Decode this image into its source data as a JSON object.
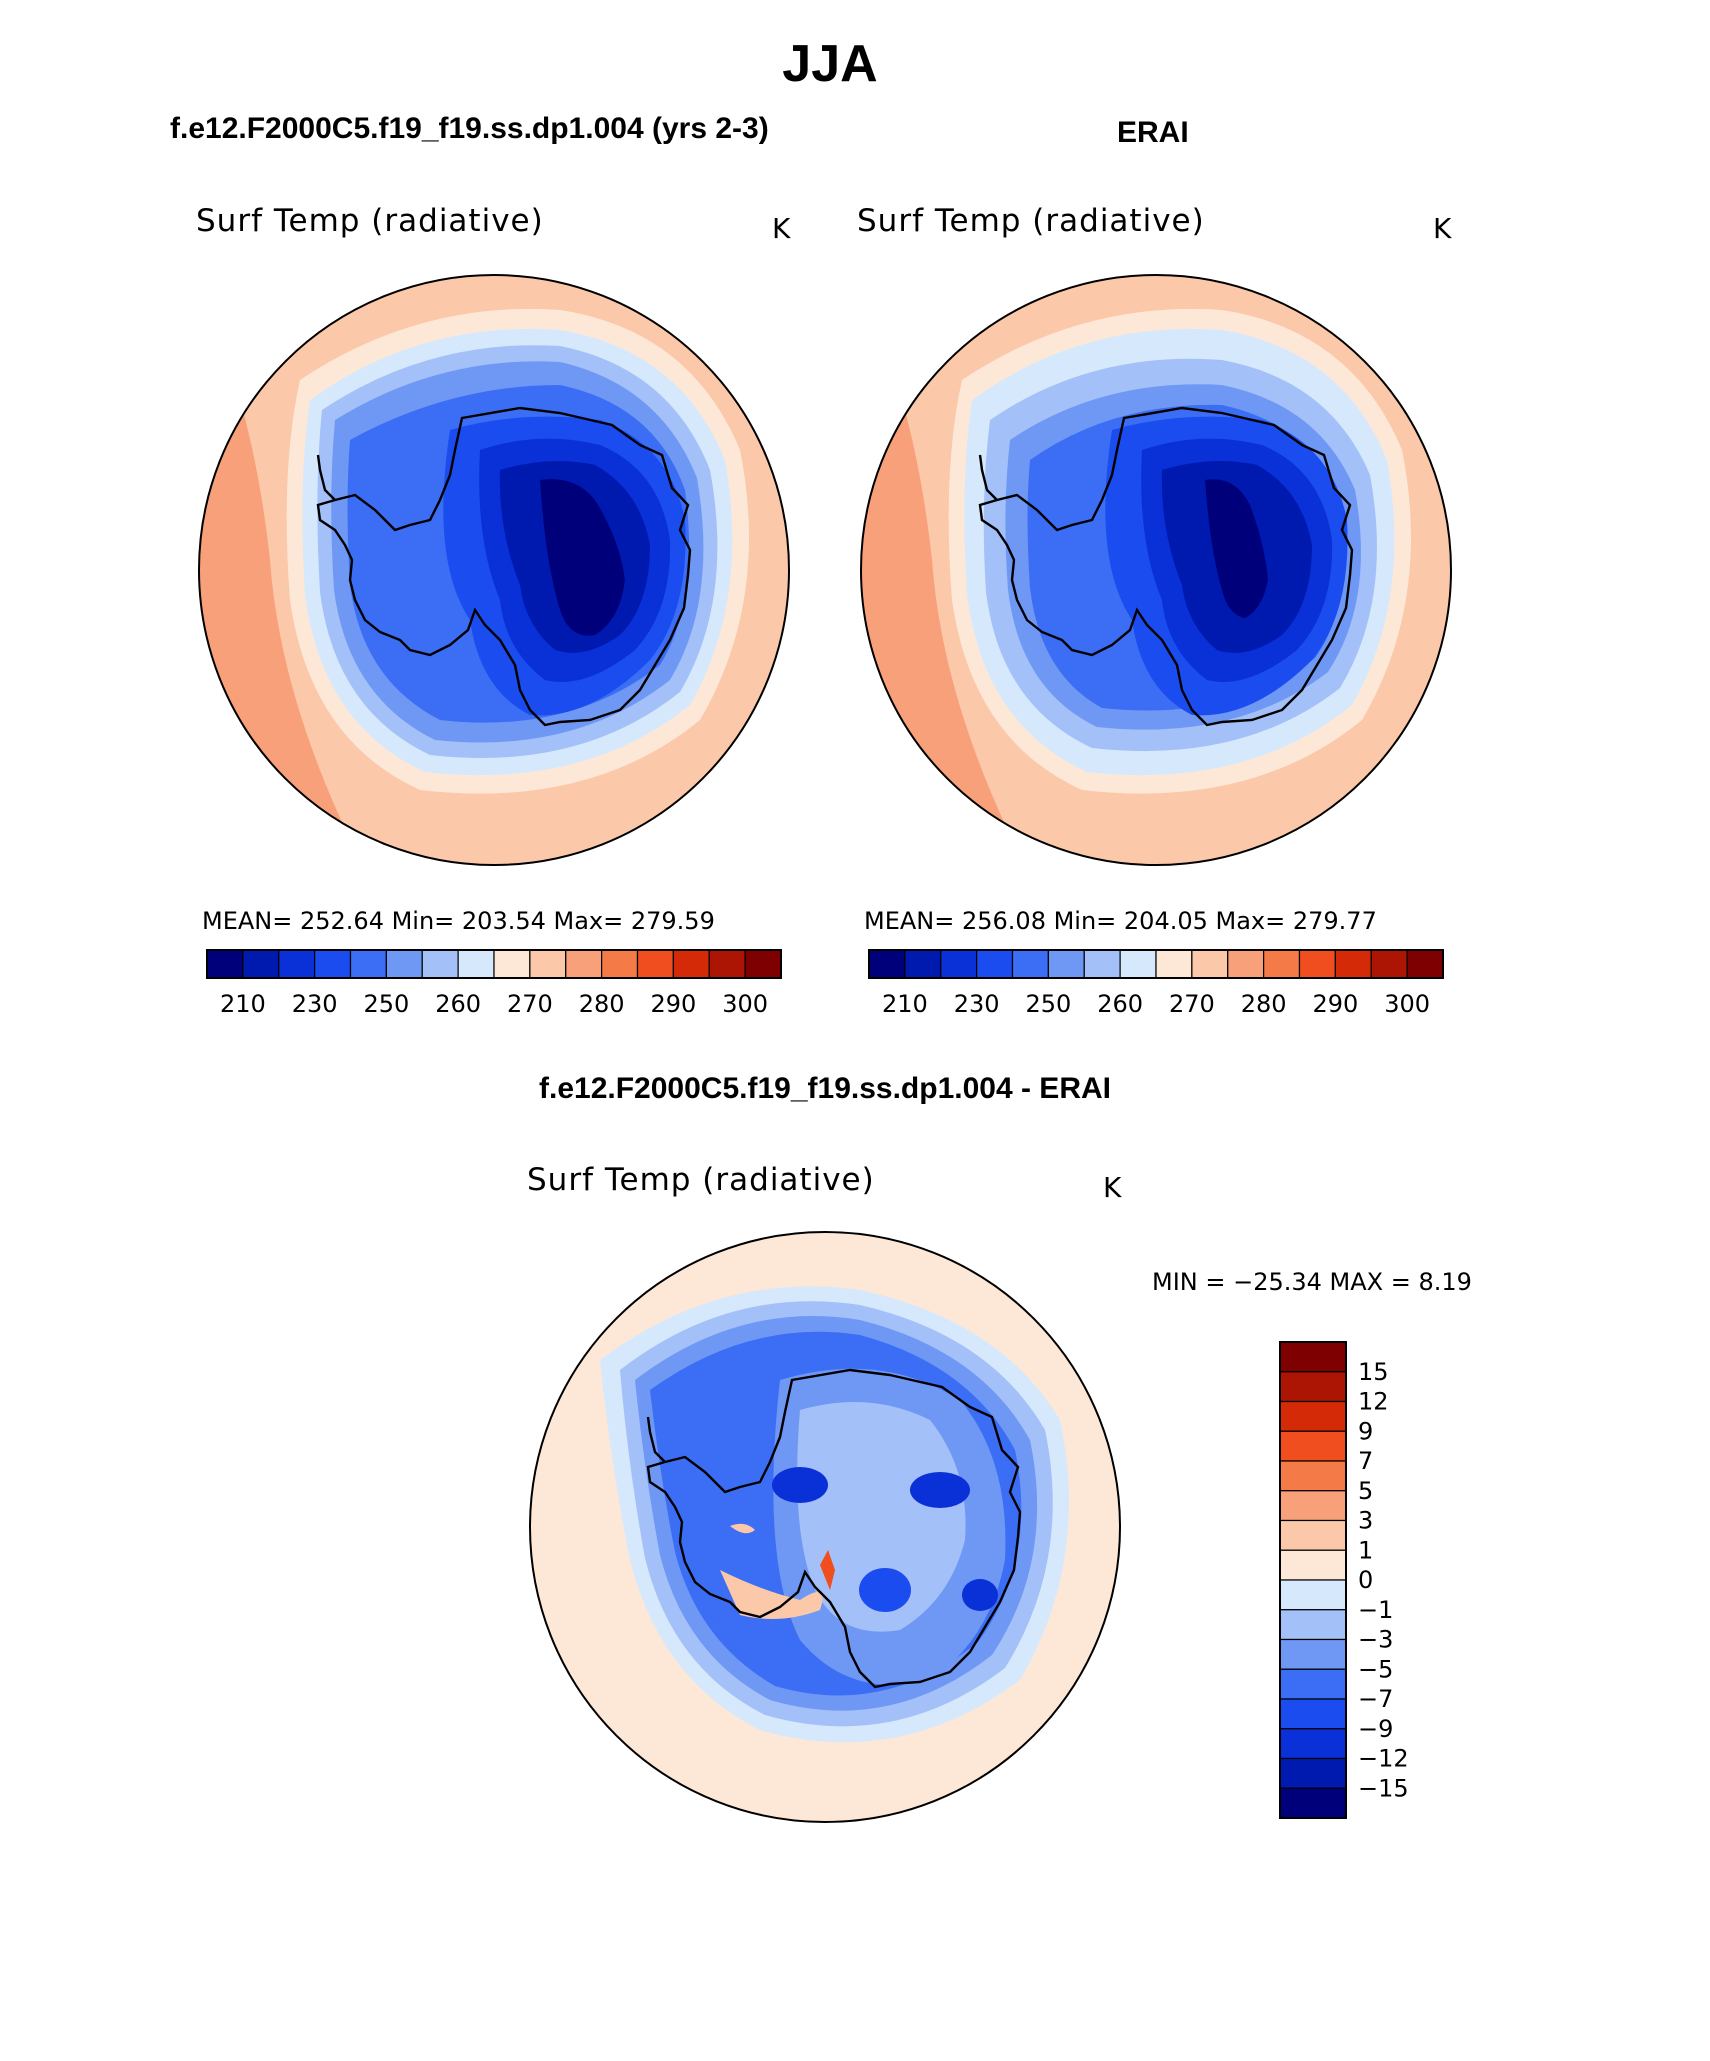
{
  "figure": {
    "title": "JJA"
  },
  "colors": {
    "abs_scale": [
      "#00007a",
      "#001ab0",
      "#0a30d8",
      "#1a4cf0",
      "#3b6ef4",
      "#6e98f4",
      "#a3c0f8",
      "#d6e8fc",
      "#fde8d8",
      "#fbc8aa",
      "#f8a07a",
      "#f47a48",
      "#f04e1e",
      "#d42a08",
      "#ac1404",
      "#7e0000"
    ],
    "diff_scale": [
      "#00007a",
      "#001ab0",
      "#0a30d8",
      "#1a4cf0",
      "#3b6ef4",
      "#6e98f4",
      "#a3c0f8",
      "#d6e8fc",
      "#fde8d8",
      "#fbc8aa",
      "#f8a07a",
      "#f47a48",
      "#f04e1e",
      "#d42a08",
      "#ac1404",
      "#7e0000"
    ],
    "continent_outline": "#000000"
  },
  "chart_data": [
    {
      "type": "heatmap",
      "projection": "south-polar-stereographic",
      "case_title": "f.e12.F2000C5.f19_f19.ss.dp1.004 (yrs 2-3)",
      "variable": "Surf Temp (radiative)",
      "units": "K",
      "stats_text": "MEAN=  252.64    Min=  203.54    Max=  279.59",
      "stats": {
        "mean": 252.64,
        "min": 203.54,
        "max": 279.59
      },
      "colorbar": {
        "orientation": "horizontal",
        "levels": [
          210,
          220,
          230,
          240,
          250,
          255,
          260,
          265,
          270,
          275,
          280,
          285,
          290,
          295,
          300
        ],
        "tick_labels": [
          "210",
          "230",
          "250",
          "260",
          "270",
          "280",
          "290",
          "300"
        ]
      }
    },
    {
      "type": "heatmap",
      "projection": "south-polar-stereographic",
      "case_title": "ERAI",
      "variable": "Surf Temp (radiative)",
      "units": "K",
      "stats_text": "MEAN=  256.08    Min=  204.05    Max=  279.77",
      "stats": {
        "mean": 256.08,
        "min": 204.05,
        "max": 279.77
      },
      "colorbar": {
        "orientation": "horizontal",
        "levels": [
          210,
          220,
          230,
          240,
          250,
          255,
          260,
          265,
          270,
          275,
          280,
          285,
          290,
          295,
          300
        ],
        "tick_labels": [
          "210",
          "230",
          "250",
          "260",
          "270",
          "280",
          "290",
          "300"
        ]
      }
    },
    {
      "type": "heatmap",
      "projection": "south-polar-stereographic",
      "case_title": "f.e12.F2000C5.f19_f19.ss.dp1.004 - ERAI",
      "variable": "Surf Temp (radiative)",
      "units": "K",
      "stats_text": "MIN =  −25.34  MAX =     8.19",
      "stats": {
        "min": -25.34,
        "max": 8.19
      },
      "colorbar": {
        "orientation": "vertical",
        "levels": [
          -15,
          -12,
          -9,
          -7,
          -5,
          -3,
          -1,
          0,
          1,
          3,
          5,
          7,
          9,
          12,
          15
        ],
        "tick_labels": [
          "15",
          "12",
          "9",
          "7",
          "5",
          "3",
          "1",
          "0",
          "−1",
          "−3",
          "−5",
          "−7",
          "−9",
          "−12",
          "−15"
        ]
      }
    }
  ]
}
